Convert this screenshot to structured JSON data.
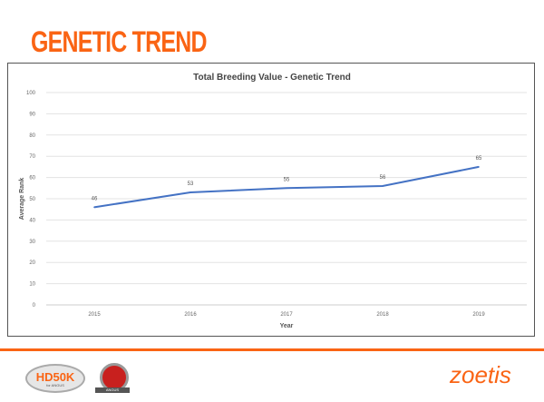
{
  "page_title": "GENETIC TREND",
  "footer": {
    "logo1": "HD50K",
    "logo1_sub": "for ANGUS",
    "logo2": "ANGUS",
    "brand": "zoetis"
  },
  "colors": {
    "accent": "#fa6414",
    "line": "#4472c4"
  },
  "chart_data": {
    "type": "line",
    "title": "Total Breeding Value - Genetic Trend",
    "xlabel": "Year",
    "ylabel": "Average Rank",
    "categories": [
      "2015",
      "2016",
      "2017",
      "2018",
      "2019"
    ],
    "values": [
      46,
      53,
      55,
      56,
      65
    ],
    "ylim": [
      0,
      100
    ],
    "yticks": [
      0,
      10,
      20,
      30,
      40,
      50,
      60,
      70,
      80,
      90,
      100
    ],
    "grid": true,
    "legend": "none"
  }
}
